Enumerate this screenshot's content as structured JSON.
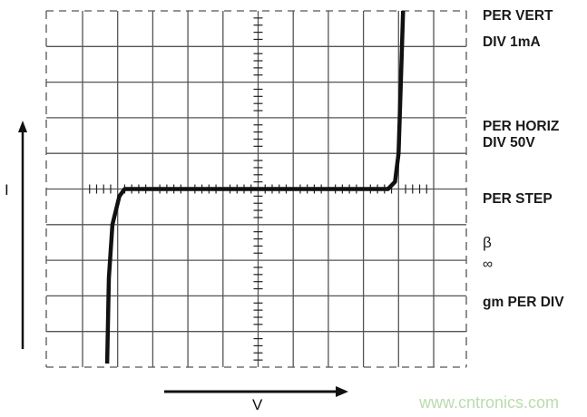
{
  "settings": {
    "per_vert": "PER VERT",
    "div_vert": "DIV 1mA",
    "per_horiz": "PER HORIZ",
    "div_horiz": "DIV 50V",
    "per_step": "PER STEP",
    "beta_symbol": "β",
    "beta_value": "∞",
    "gm_per_div": "gm PER DIV"
  },
  "axes": {
    "y_label": "I",
    "x_label": "V"
  },
  "watermark": "www.cntronics.com",
  "chart_data": {
    "type": "line",
    "grid": true,
    "divisions": {
      "x": 10,
      "y": 10
    },
    "x_units_per_div": "50V",
    "y_units_per_div": "1mA",
    "series": [
      {
        "x_div": [
          -4.3,
          -4.25,
          -4.15,
          -3.95,
          -3.8,
          0,
          3.7,
          3.9,
          4.0,
          4.05,
          4.13
        ],
        "y_div": [
          -4.9,
          -2.5,
          -1.0,
          -0.2,
          0,
          0,
          0,
          0.2,
          1.0,
          2.5,
          5.0
        ]
      }
    ],
    "colors": {
      "curve": "#111111",
      "grid": "#555555"
    }
  }
}
